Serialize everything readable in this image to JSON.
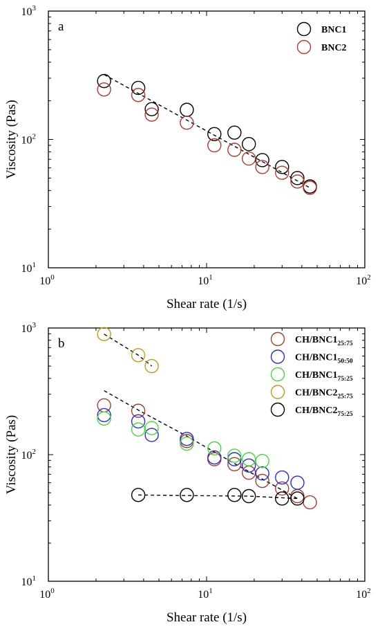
{
  "chart_data": [
    {
      "panel": "a",
      "type": "scatter",
      "xscale": "log",
      "yscale": "log",
      "xlim": [
        1,
        100
      ],
      "ylim": [
        10,
        1000
      ],
      "xlabel": "Shear rate (1/s)",
      "ylabel": "Viscosity (Pas)",
      "legend_position": "top-right",
      "grid": false,
      "series": [
        {
          "name": "BNC1",
          "color": "#000000",
          "x": [
            2.25,
            3.7,
            4.5,
            7.5,
            11.2,
            15.0,
            18.5,
            22.5,
            30.0,
            37.5,
            45.0
          ],
          "y": [
            285,
            252,
            172,
            170,
            110,
            113,
            92,
            69,
            61,
            50,
            43
          ]
        },
        {
          "name": "BNC2",
          "color": "#b03a2e",
          "x": [
            2.25,
            3.7,
            4.5,
            7.5,
            11.2,
            15.0,
            18.5,
            22.5,
            30.0,
            37.5,
            45.0
          ],
          "y": [
            245,
            222,
            156,
            135,
            90,
            83,
            71,
            61,
            55,
            47,
            42
          ]
        }
      ],
      "fit_lines": [
        {
          "x": [
            2.25,
            45.0
          ],
          "y": [
            320,
            42
          ]
        }
      ]
    },
    {
      "panel": "b",
      "type": "scatter",
      "xscale": "log",
      "yscale": "log",
      "xlim": [
        1,
        100
      ],
      "ylim": [
        10,
        1000
      ],
      "xlabel": "Shear rate (1/s)",
      "ylabel": "Viscosity (Pas)",
      "legend_position": "top-right",
      "grid": false,
      "series": [
        {
          "name": "CH/BNC1",
          "subscript": "25:75",
          "color": "#a0402f",
          "x": [
            2.25,
            3.7,
            7.5,
            11.2,
            15.0,
            18.5,
            22.5,
            30.0,
            37.5,
            45.0
          ],
          "y": [
            245,
            222,
            128,
            92,
            84,
            72,
            62,
            54,
            47,
            42
          ]
        },
        {
          "name": "CH/BNC1",
          "subscript": "50:50",
          "color": "#2a2ad6",
          "x": [
            2.25,
            3.7,
            4.5,
            7.5,
            11.2,
            15.0,
            18.5,
            22.5,
            30.0,
            37.5
          ],
          "y": [
            205,
            183,
            143,
            133,
            95,
            92,
            82,
            71,
            66,
            60
          ]
        },
        {
          "name": "CH/BNC1",
          "subscript": "75:25",
          "color": "#49d63a",
          "x": [
            2.25,
            3.7,
            4.5,
            7.5,
            11.2,
            15.0,
            18.5,
            22.5
          ],
          "y": [
            193,
            158,
            162,
            122,
            112,
            98,
            92,
            89
          ]
        },
        {
          "name": "CH/BNC2",
          "subscript": "25:75",
          "color": "#c8961e",
          "x": [
            2.25,
            3.7,
            4.5
          ],
          "y": [
            895,
            610,
            500
          ]
        },
        {
          "name": "CH/BNC2",
          "subscript": "75:25",
          "color": "#000000",
          "x": [
            3.7,
            7.5,
            15.0,
            18.5,
            30.0,
            37.5
          ],
          "y": [
            48,
            48,
            48,
            47,
            45,
            45
          ]
        }
      ],
      "fit_lines": [
        {
          "x": [
            2.25,
            3.7,
            4.5
          ],
          "y": [
            895,
            610,
            500
          ]
        },
        {
          "x": [
            2.25,
            3.7,
            7.5,
            15.0,
            37.5
          ],
          "y": [
            320,
            225,
            140,
            85,
            45
          ]
        },
        {
          "x": [
            3.7,
            7.5,
            18.5,
            37.5
          ],
          "y": [
            48,
            47.5,
            47,
            45
          ]
        }
      ]
    }
  ],
  "panels": [
    {
      "label": "a",
      "xlabel": "Shear rate (1/s)",
      "ylabel": "Viscosity (Pas)",
      "xticks": [
        {
          "base": "10",
          "exp": "0"
        },
        {
          "base": "10",
          "exp": "1"
        },
        {
          "base": "10",
          "exp": "2"
        }
      ],
      "yticks": [
        {
          "base": "10",
          "exp": "1"
        },
        {
          "base": "10",
          "exp": "2"
        },
        {
          "base": "10",
          "exp": "3"
        }
      ]
    },
    {
      "label": "b",
      "xlabel": "Shear rate (1/s)",
      "ylabel": "Viscosity (Pas)",
      "xticks": [
        {
          "base": "10",
          "exp": "0"
        },
        {
          "base": "10",
          "exp": "1"
        },
        {
          "base": "10",
          "exp": "2"
        }
      ],
      "yticks": [
        {
          "base": "10",
          "exp": "1"
        },
        {
          "base": "10",
          "exp": "2"
        },
        {
          "base": "10",
          "exp": "3"
        }
      ]
    }
  ]
}
